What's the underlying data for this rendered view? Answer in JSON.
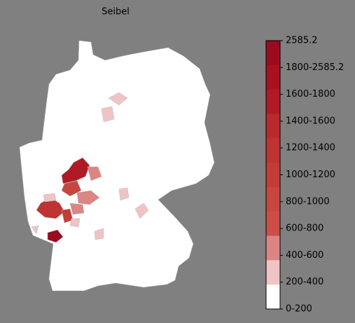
{
  "title": "Seibel",
  "legend": {
    "labels": [
      "2585.2",
      "1800-2585.2",
      "1600-1800",
      "1400-1600",
      "1200-1400",
      "1000-1200",
      "800-1000",
      "600-800",
      "400-600",
      "200-400",
      "0-200"
    ],
    "colors": [
      "#9b0a1e",
      "#a8111f",
      "#b01a25",
      "#b82a2c",
      "#bd3432",
      "#c23c38",
      "#c7463f",
      "#cb4f48",
      "#db8585",
      "#f0c4c4",
      "#ffffff"
    ]
  }
}
